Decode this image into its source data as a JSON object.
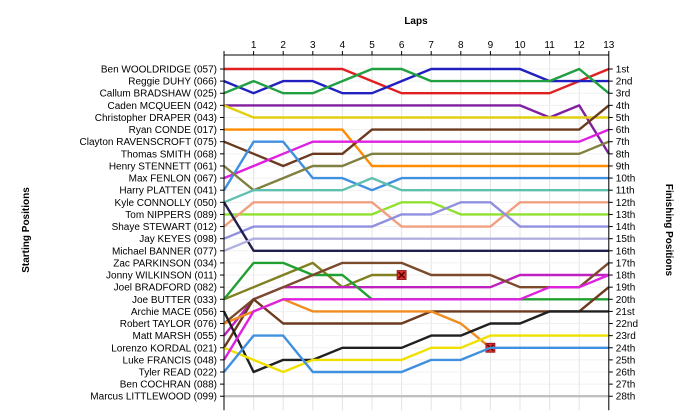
{
  "chart_data": {
    "type": "line",
    "xlabel": "Laps",
    "ylabel_left": "Starting Positions",
    "ylabel_right": "Finishing Positions",
    "laps": [
      1,
      2,
      3,
      4,
      5,
      6,
      7,
      8,
      9,
      10,
      11,
      12,
      13
    ],
    "grid": true,
    "y_reversed": true,
    "starting_grid": [
      "Ben WOOLDRIDGE (057)",
      "Reggie DUHY (066)",
      "Callum BRADSHAW (025)",
      "Caden MCQUEEN (042)",
      "Christopher DRAPER (043)",
      "Ryan CONDE (017)",
      "Clayton RAVENSCROFT (075)",
      "Thomas SMITH (068)",
      "Henry STENNETT (061)",
      "Max FENLON (067)",
      "Harry PLATTEN (041)",
      "Kyle CONNOLLY (050)",
      "Tom NIPPERS (089)",
      "Shaye STEWART (012)",
      "Jay KEYES (098)",
      "Michael BANNER (077)",
      "Zac PARKINSON (034)",
      "Jonny WILKINSON (011)",
      "Joel BRADFORD (082)",
      "Joe BUTTER (033)",
      "Archie MACE (056)",
      "Robert TAYLOR (076)",
      "Matt MARSH (055)",
      "Lorenzo KORDAL (021)",
      "Luke FRANCIS (048)",
      "Tyler READ (022)",
      "Ben COCHRAN (088)",
      "Marcus LITTLEWOOD (099)"
    ],
    "finishing_positions": [
      "1st",
      "2nd",
      "3rd",
      "4th",
      "5th",
      "6th",
      "7th",
      "8th",
      "9th",
      "10th",
      "11th",
      "12th",
      "13th",
      "14th",
      "15th",
      "16th",
      "17th",
      "18th",
      "19th",
      "20th",
      "21st",
      "22nd",
      "23rd",
      "24th",
      "25th",
      "26th",
      "27th",
      "28th"
    ],
    "series": [
      {
        "name": "Ben WOOLDRIDGE (057)",
        "color": "#e02020",
        "positions": [
          1,
          1,
          1,
          1,
          1,
          2,
          3,
          3,
          3,
          3,
          3,
          3,
          2,
          1
        ],
        "retired": false
      },
      {
        "name": "Reggie DUHY (066)",
        "color": "#2020c0",
        "positions": [
          2,
          3,
          2,
          2,
          3,
          3,
          2,
          1,
          1,
          1,
          1,
          2,
          2,
          2
        ],
        "retired": false
      },
      {
        "name": "Callum BRADSHAW (025)",
        "color": "#20a040",
        "positions": [
          3,
          2,
          3,
          3,
          2,
          1,
          1,
          2,
          2,
          2,
          2,
          2,
          1,
          3
        ],
        "retired": false
      },
      {
        "name": "Caden MCQUEEN (042)",
        "color": "#8020a0",
        "positions": [
          4,
          4,
          4,
          4,
          4,
          4,
          4,
          4,
          4,
          4,
          4,
          5,
          4,
          8
        ],
        "retired": false
      },
      {
        "name": "Christopher DRAPER (043)",
        "color": "#e0d010",
        "positions": [
          4,
          5,
          5,
          5,
          5,
          5,
          5,
          5,
          5,
          5,
          5,
          5,
          5,
          5
        ],
        "retired": false
      },
      {
        "name": "Ryan CONDE (017)",
        "color": "#ff8c00",
        "positions": [
          6,
          6,
          6,
          6,
          6,
          9,
          9,
          9,
          9,
          9,
          9,
          9,
          9,
          9
        ],
        "retired": false
      },
      {
        "name": "Clayton RAVENSCROFT (075)",
        "color": "#6b3a1f",
        "positions": [
          7,
          8,
          9,
          8,
          8,
          6,
          6,
          6,
          6,
          6,
          6,
          6,
          6,
          4
        ],
        "retired": false
      },
      {
        "name": "Thomas SMITH (068)",
        "color": "#e020e0",
        "positions": [
          10,
          9,
          8,
          7,
          7,
          7,
          7,
          7,
          7,
          7,
          7,
          7,
          7,
          6
        ],
        "retired": false
      },
      {
        "name": "Max FENLON (067)",
        "color": "#4090e0",
        "positions": [
          11,
          7,
          7,
          10,
          10,
          11,
          10,
          10,
          10,
          10,
          10,
          10,
          10,
          10
        ],
        "retired": false
      },
      {
        "name": "Harry PLATTEN (041)",
        "color": "#808040",
        "positions": [
          9,
          11,
          10,
          9,
          9,
          8,
          8,
          8,
          8,
          8,
          8,
          8,
          8,
          7
        ],
        "retired": false
      },
      {
        "name": "Kyle CONNOLLY (050)",
        "color": "#60c0b0",
        "positions": [
          12,
          11,
          11,
          11,
          11,
          10,
          11,
          11,
          11,
          11,
          11,
          11,
          11,
          11
        ],
        "retired": false
      },
      {
        "name": "Tom NIPPERS (089)",
        "color": "#90e030",
        "positions": [
          13,
          13,
          13,
          13,
          13,
          13,
          12,
          12,
          13,
          13,
          13,
          13,
          13,
          13
        ],
        "retired": false
      },
      {
        "name": "Shaye STEWART (012)",
        "color": "#f0a080",
        "positions": [
          14,
          12,
          12,
          12,
          12,
          12,
          14,
          14,
          14,
          14,
          12,
          12,
          12,
          12
        ],
        "retired": false
      },
      {
        "name": "Jay KEYES (098)",
        "color": "#9090e0",
        "positions": [
          15,
          14,
          14,
          14,
          14,
          14,
          13,
          13,
          12,
          12,
          14,
          14,
          14,
          14
        ],
        "retired": false
      },
      {
        "name": "Michael BANNER (077)",
        "color": "#202050",
        "positions": [
          12,
          16,
          16,
          16,
          16,
          16,
          16,
          16,
          16,
          16,
          16,
          16,
          16,
          16
        ],
        "retired": false
      },
      {
        "name": "Zac PARKINSON (034)",
        "color": "#b0b0e0",
        "positions": [
          16,
          15,
          15,
          15,
          15,
          15,
          15,
          15,
          15,
          15,
          15,
          15,
          15,
          15
        ],
        "retired": false
      },
      {
        "name": "Jonny WILKINSON (011)",
        "color": "#808020",
        "positions": [
          20,
          19,
          18,
          17,
          19,
          18,
          18
        ],
        "retired": true
      },
      {
        "name": "Joel BRADFORD (082)",
        "color": "#c020c0",
        "positions": [
          23,
          20,
          19,
          19,
          19,
          19,
          19,
          19,
          19,
          19,
          18,
          18,
          18,
          18
        ],
        "retired": false
      },
      {
        "name": "Joe BUTTER (033)",
        "color": "#20a030",
        "positions": [
          20,
          17,
          17,
          18,
          18,
          20,
          20,
          20,
          20,
          20,
          20,
          20,
          20,
          20
        ],
        "retired": false
      },
      {
        "name": "Archie MACE (056)",
        "color": "#7a4a2a",
        "positions": [
          22,
          20,
          19,
          18,
          17,
          17,
          17,
          18,
          18,
          18,
          19,
          19,
          19,
          17
        ],
        "retired": false
      },
      {
        "name": "Robert TAYLOR (076)",
        "color": "#6b3a1f",
        "positions": [
          24,
          20,
          22,
          22,
          22,
          22,
          22,
          21,
          21,
          21,
          21,
          21,
          21,
          19
        ],
        "retired": false
      },
      {
        "name": "Matt MARSH (055)",
        "color": "#f08c20",
        "positions": [
          22,
          21,
          20,
          21,
          21,
          21,
          21,
          21,
          22,
          24
        ],
        "retired": true
      },
      {
        "name": "Lorenzo KORDAL (021)",
        "color": "#202020",
        "positions": [
          21,
          26,
          25,
          25,
          24,
          24,
          24,
          23,
          23,
          22,
          22,
          21,
          21,
          21
        ],
        "retired": false
      },
      {
        "name": "Luke FRANCIS (048)",
        "color": "#f0e000",
        "positions": [
          24,
          25,
          26,
          25,
          25,
          25,
          25,
          24,
          24,
          23,
          23,
          23,
          23,
          23
        ],
        "retired": false
      },
      {
        "name": "Tyler READ (022)",
        "color": "#4090e0",
        "positions": [
          26,
          23,
          23,
          26,
          26,
          26,
          26,
          25,
          25,
          24,
          24,
          24,
          24,
          24
        ],
        "retired": false
      },
      {
        "name": "Ben COCHRAN (088)",
        "color": "#e020e0",
        "positions": [
          25,
          21,
          20,
          20,
          20,
          20,
          20,
          20,
          20,
          20,
          20,
          19,
          19,
          18
        ],
        "retired": false
      },
      {
        "name": "Marcus LITTLEWOOD (099)",
        "color": "#c0c0c0",
        "positions": [
          28,
          28,
          28,
          28,
          28,
          28,
          28,
          28,
          28,
          28,
          28,
          28,
          28,
          28
        ],
        "retired": false
      }
    ]
  }
}
